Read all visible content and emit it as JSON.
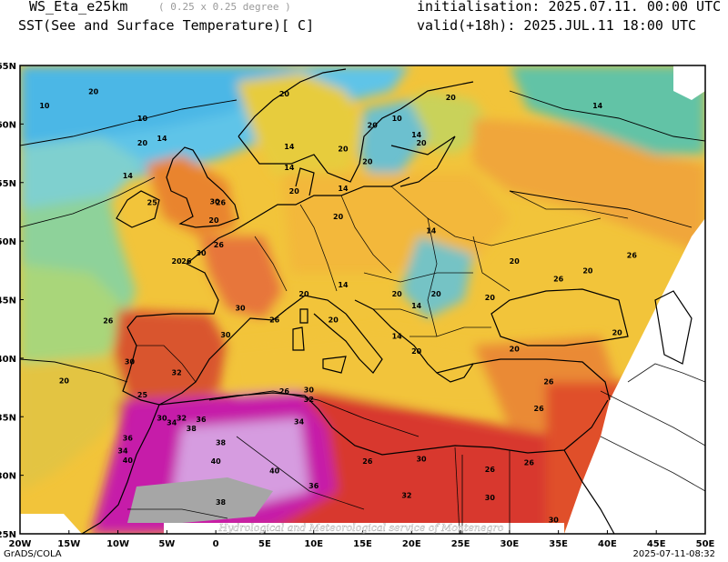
{
  "header": {
    "model": "WS_Eta_e25km",
    "resolution": "( 0.25 x 0.25 degree )",
    "field": "SST(See and Surface Temperature)[ C]",
    "init": "initialisation: 2025.07.11. 00:00 UTC",
    "valid": "valid(+18h): 2025.JUL.11 18:00 UTC"
  },
  "axes": {
    "lon_labels": [
      "20W",
      "15W",
      "10W",
      "5W",
      "0",
      "5E",
      "10E",
      "15E",
      "20E",
      "25E",
      "30E",
      "35E",
      "40E",
      "45E",
      "50E"
    ],
    "lat_labels": [
      "65N",
      "60N",
      "55N",
      "50N",
      "45N",
      "40N",
      "35N",
      "30N",
      "25N"
    ]
  },
  "watermark": "Hydrological and Meteorological service of Montenegro",
  "footer": {
    "left": "GrADS/COLA",
    "right": "2025-07-11-08:32"
  },
  "contour_labels": [
    {
      "text": "20",
      "lon": -12.5,
      "lat": 62.8
    },
    {
      "text": "10",
      "lon": -17.5,
      "lat": 61.6
    },
    {
      "text": "10",
      "lon": -7.5,
      "lat": 60.5
    },
    {
      "text": "20",
      "lon": -7.5,
      "lat": 58.4
    },
    {
      "text": "14",
      "lon": -5.5,
      "lat": 58.8
    },
    {
      "text": "14",
      "lon": -9,
      "lat": 55.6
    },
    {
      "text": "25",
      "lon": -6.5,
      "lat": 53.3
    },
    {
      "text": "30",
      "lon": -0.1,
      "lat": 53.4
    },
    {
      "text": "26",
      "lon": 0.5,
      "lat": 53.3
    },
    {
      "text": "20",
      "lon": -0.2,
      "lat": 51.8
    },
    {
      "text": "26",
      "lon": 0.3,
      "lat": 49.7
    },
    {
      "text": "20",
      "lon": -4,
      "lat": 48.3
    },
    {
      "text": "26",
      "lon": -3,
      "lat": 48.3
    },
    {
      "text": "30",
      "lon": -1.5,
      "lat": 49
    },
    {
      "text": "26",
      "lon": -11,
      "lat": 43.2
    },
    {
      "text": "30",
      "lon": 2.5,
      "lat": 44.3
    },
    {
      "text": "26",
      "lon": 6,
      "lat": 43.3
    },
    {
      "text": "30",
      "lon": 1,
      "lat": 42
    },
    {
      "text": "30",
      "lon": -8.8,
      "lat": 39.7
    },
    {
      "text": "32",
      "lon": -4,
      "lat": 38.8
    },
    {
      "text": "20",
      "lon": -15.5,
      "lat": 38.1
    },
    {
      "text": "25",
      "lon": -7.5,
      "lat": 36.9
    },
    {
      "text": "32",
      "lon": -3.5,
      "lat": 34.9
    },
    {
      "text": "34",
      "lon": -4.5,
      "lat": 34.5
    },
    {
      "text": "30",
      "lon": -5.5,
      "lat": 34.9
    },
    {
      "text": "36",
      "lon": -1.5,
      "lat": 34.8
    },
    {
      "text": "38",
      "lon": -2.5,
      "lat": 34
    },
    {
      "text": "36",
      "lon": -9,
      "lat": 33.2
    },
    {
      "text": "34",
      "lon": -9.5,
      "lat": 32.1
    },
    {
      "text": "40",
      "lon": -9,
      "lat": 31.3
    },
    {
      "text": "38",
      "lon": 0.5,
      "lat": 32.8
    },
    {
      "text": "40",
      "lon": 0,
      "lat": 31.2
    },
    {
      "text": "40",
      "lon": 6,
      "lat": 30.4
    },
    {
      "text": "38",
      "lon": 0.5,
      "lat": 27.7
    },
    {
      "text": "36",
      "lon": 10,
      "lat": 29.1
    },
    {
      "text": "34",
      "lon": 8.5,
      "lat": 34.6
    },
    {
      "text": "26",
      "lon": 7,
      "lat": 37.2
    },
    {
      "text": "30",
      "lon": 9.5,
      "lat": 37.3
    },
    {
      "text": "32",
      "lon": 9.5,
      "lat": 36.5
    },
    {
      "text": "26",
      "lon": 15.5,
      "lat": 31.2
    },
    {
      "text": "30",
      "lon": 21,
      "lat": 31.4
    },
    {
      "text": "32",
      "lon": 19.5,
      "lat": 28.3
    },
    {
      "text": "30",
      "lon": 28,
      "lat": 28.1
    },
    {
      "text": "26",
      "lon": 32,
      "lat": 31.1
    },
    {
      "text": "30",
      "lon": 34.5,
      "lat": 26.2
    },
    {
      "text": "10",
      "lon": 18.5,
      "lat": 60.5
    },
    {
      "text": "20",
      "lon": 16,
      "lat": 59.9
    },
    {
      "text": "14",
      "lon": 20.5,
      "lat": 59.1
    },
    {
      "text": "20",
      "lon": 21,
      "lat": 58.4
    },
    {
      "text": "20",
      "lon": 7,
      "lat": 62.6
    },
    {
      "text": "20",
      "lon": 24,
      "lat": 62.3
    },
    {
      "text": "14",
      "lon": 39,
      "lat": 61.6
    },
    {
      "text": "20",
      "lon": 13,
      "lat": 57.9
    },
    {
      "text": "14",
      "lon": 7.5,
      "lat": 58.1
    },
    {
      "text": "14",
      "lon": 7.5,
      "lat": 56.3
    },
    {
      "text": "20",
      "lon": 8,
      "lat": 54.3
    },
    {
      "text": "14",
      "lon": 13,
      "lat": 54.5
    },
    {
      "text": "20",
      "lon": 12.5,
      "lat": 52.1
    },
    {
      "text": "14",
      "lon": 22,
      "lat": 50.9
    },
    {
      "text": "20",
      "lon": 30.5,
      "lat": 48.3
    },
    {
      "text": "14",
      "lon": 13,
      "lat": 46.3
    },
    {
      "text": "20",
      "lon": 9,
      "lat": 45.5
    },
    {
      "text": "20",
      "lon": 12,
      "lat": 43.3
    },
    {
      "text": "20",
      "lon": 18.5,
      "lat": 45.5
    },
    {
      "text": "14",
      "lon": 20.5,
      "lat": 44.5
    },
    {
      "text": "20",
      "lon": 22.5,
      "lat": 45.5
    },
    {
      "text": "20",
      "lon": 28,
      "lat": 45.2
    },
    {
      "text": "26",
      "lon": 35,
      "lat": 46.8
    },
    {
      "text": "20",
      "lon": 38,
      "lat": 47.5
    },
    {
      "text": "26",
      "lon": 42.5,
      "lat": 48.8
    },
    {
      "text": "20",
      "lon": 41,
      "lat": 42.2
    },
    {
      "text": "14",
      "lon": 18.5,
      "lat": 41.9
    },
    {
      "text": "20",
      "lon": 20.5,
      "lat": 40.6
    },
    {
      "text": "20",
      "lon": 30.5,
      "lat": 40.8
    },
    {
      "text": "26",
      "lon": 34,
      "lat": 38
    },
    {
      "text": "26",
      "lon": 33,
      "lat": 35.7
    },
    {
      "text": "26",
      "lon": 28,
      "lat": 30.5
    },
    {
      "text": "20",
      "lon": 15.5,
      "lat": 56.8
    }
  ]
}
